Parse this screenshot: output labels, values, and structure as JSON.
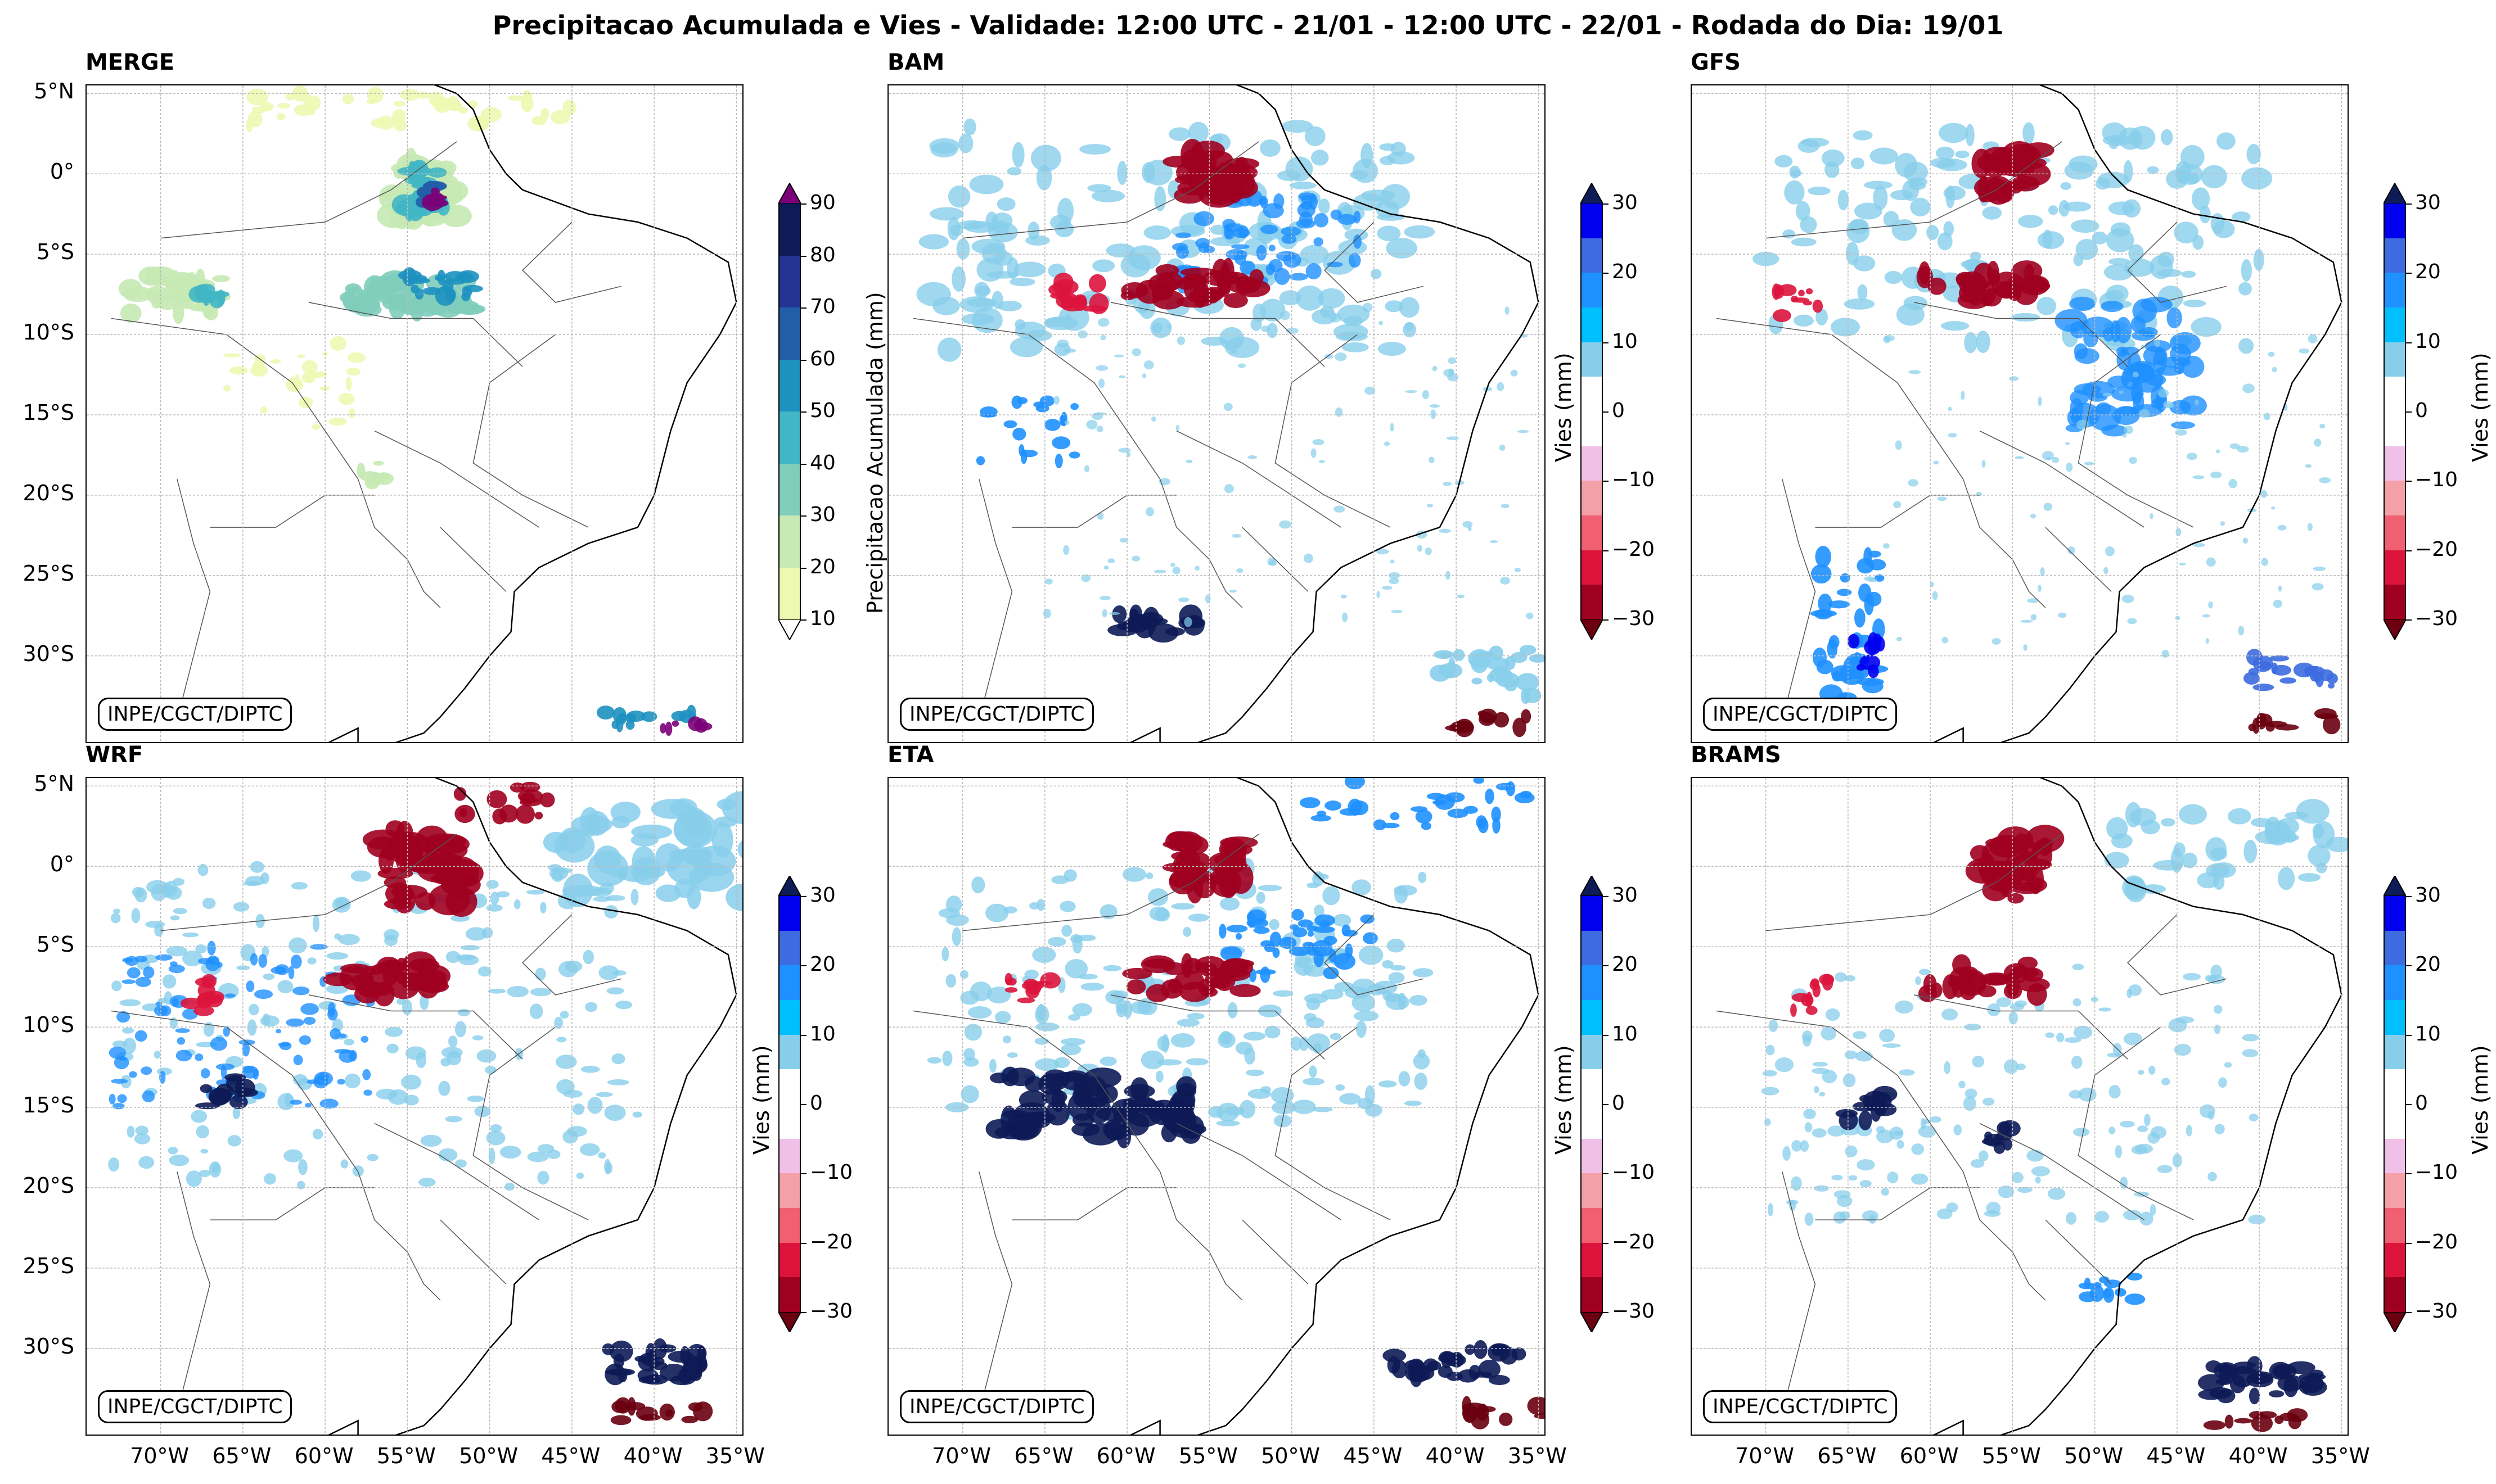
{
  "title": "Precipitacao Acumulada e Vies - Validade: 12:00 UTC - 21/01 - 12:00 UTC - 22/01 - Rodada do Dia: 19/01",
  "credit": "INPE/CGCT/DIPTC",
  "lat_labels": [
    "5°N",
    "0°",
    "5°S",
    "10°S",
    "15°S",
    "20°S",
    "25°S",
    "30°S"
  ],
  "lon_labels": [
    "70°W",
    "65°W",
    "60°W",
    "55°W",
    "50°W",
    "45°W",
    "40°W",
    "35°W"
  ],
  "panels": [
    {
      "name": "MERGE",
      "type": "precip"
    },
    {
      "name": "BAM",
      "type": "bias"
    },
    {
      "name": "GFS",
      "type": "bias"
    },
    {
      "name": "WRF",
      "type": "bias"
    },
    {
      "name": "ETA",
      "type": "bias"
    },
    {
      "name": "BRAMS",
      "type": "bias"
    }
  ],
  "colorbar_precip": {
    "label": "Precipitacao Acumulada (mm)",
    "ticks": [
      "90",
      "80",
      "70",
      "60",
      "50",
      "40",
      "30",
      "20",
      "10"
    ],
    "colors": [
      "#0d1b57",
      "#253494",
      "#225ea8",
      "#1d91c0",
      "#41b6c4",
      "#7fcdbb",
      "#c7e9b4",
      "#edf8b1"
    ],
    "over_color": "#7a0177"
  },
  "colorbar_bias": {
    "label": "Vies (mm)",
    "ticks": [
      "30",
      "20",
      "10",
      "0",
      "−10",
      "−20",
      "−30"
    ],
    "colors": [
      "#0000ee",
      "#3c6ce0",
      "#1e90ff",
      "#00bfff",
      "#87ceeb",
      "#ffffff",
      "#ffffff",
      "#f0c0e8",
      "#f4a0a8",
      "#f06070",
      "#dc143c",
      "#a00020"
    ],
    "over_color": "#0d1b57",
    "under_color": "#6a0010"
  }
}
